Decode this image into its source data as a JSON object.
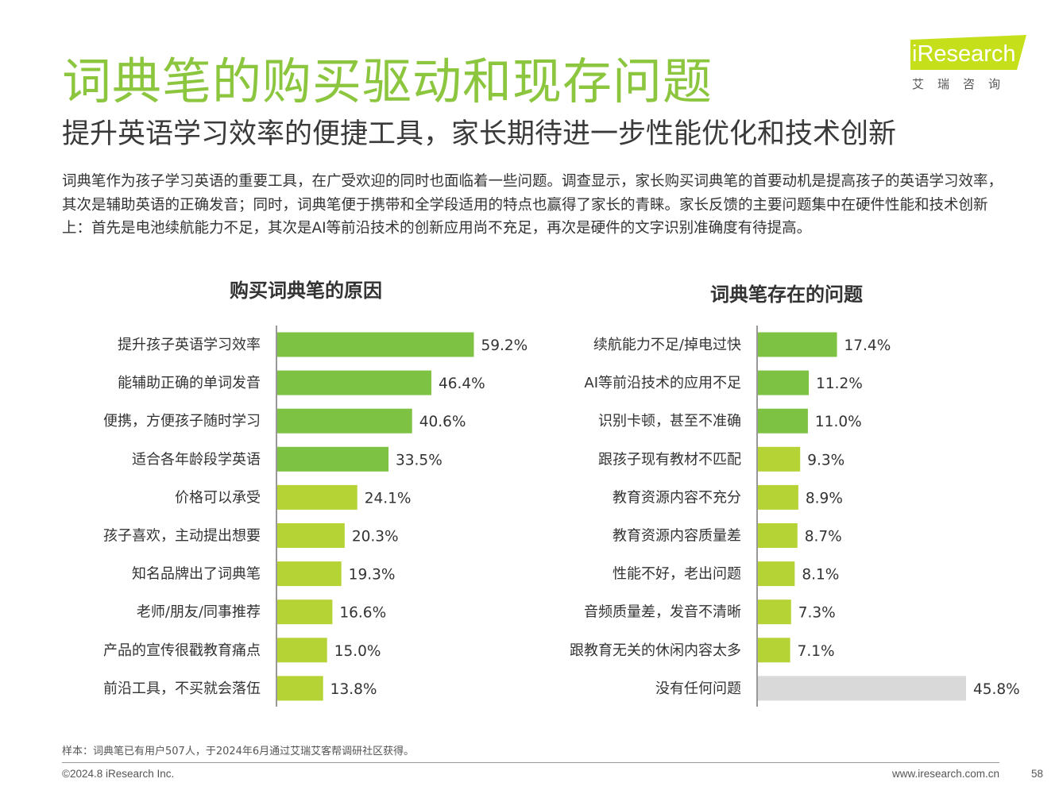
{
  "page": {
    "title": "词典笔的购买驱动和现存问题",
    "subtitle": "提升英语学习效率的便捷工具，家长期待进一步性能优化和技术创新",
    "intro": "词典笔作为孩子学习英语的重要工具，在广受欢迎的同时也面临着一些问题。调查显示，家长购买词典笔的首要动机是提高孩子的英语学习效率，其次是辅助英语的正确发音；同时，词典笔便于携带和全学段适用的特点也赢得了家长的青睐。家长反馈的主要问题集中在硬件性能和技术创新上：首先是电池续航能力不足，其次是AI等前沿技术的创新应用尚不充足，再次是硬件的文字识别准确度有待提高。",
    "sample_note": "样本：词典笔已有用户507人，于2024年6月通过艾瑞艾客帮调研社区获得。",
    "copyright": "©2024.8 iResearch Inc.",
    "url": "www.iresearch.com.cn",
    "page_number": "58"
  },
  "logo": {
    "name": "iResearch",
    "sub": "艾瑞咨询"
  },
  "colors": {
    "title_green": "#8cc63f",
    "bar_dark_green": "#7dc242",
    "bar_light_green": "#b5d335",
    "bar_gray": "#d9d9d9",
    "logo_bg": "#c5e01a"
  },
  "chart_data": [
    {
      "type": "bar",
      "orientation": "horizontal",
      "title": "购买词典笔的原因",
      "categories": [
        "提升孩子英语学习效率",
        "能辅助正确的单词发音",
        "便携，方便孩子随时学习",
        "适合各年龄段学英语",
        "价格可以承受",
        "孩子喜欢，主动提出想要",
        "知名品牌出了词典笔",
        "老师/朋友/同事推荐",
        "产品的宣传很戳教育痛点",
        "前沿工具，不买就会落伍"
      ],
      "values": [
        59.2,
        46.4,
        40.6,
        33.5,
        24.1,
        20.3,
        19.3,
        16.6,
        15.0,
        13.8
      ],
      "value_labels": [
        "59.2%",
        "46.4%",
        "40.6%",
        "33.5%",
        "24.1%",
        "20.3%",
        "19.3%",
        "16.6%",
        "15.0%",
        "13.8%"
      ],
      "bar_colors": [
        "dark",
        "dark",
        "dark",
        "dark",
        "light",
        "light",
        "light",
        "light",
        "light",
        "light"
      ],
      "unit": "%"
    },
    {
      "type": "bar",
      "orientation": "horizontal",
      "title": "词典笔存在的问题",
      "categories": [
        "续航能力不足/掉电过快",
        "AI等前沿技术的应用不足",
        "识别卡顿，甚至不准确",
        "跟孩子现有教材不匹配",
        "教育资源内容不充分",
        "教育资源内容质量差",
        "性能不好，老出问题",
        "音频质量差，发音不清晰",
        "跟教育无关的休闲内容太多",
        "没有任何问题"
      ],
      "values": [
        17.4,
        11.2,
        11.0,
        9.3,
        8.9,
        8.7,
        8.1,
        7.3,
        7.1,
        45.8
      ],
      "value_labels": [
        "17.4%",
        "11.2%",
        "11.0%",
        "9.3%",
        "8.9%",
        "8.7%",
        "8.1%",
        "7.3%",
        "7.1%",
        "45.8%"
      ],
      "bar_colors": [
        "dark",
        "dark",
        "dark",
        "light",
        "light",
        "light",
        "light",
        "light",
        "light",
        "gray"
      ],
      "unit": "%"
    }
  ]
}
